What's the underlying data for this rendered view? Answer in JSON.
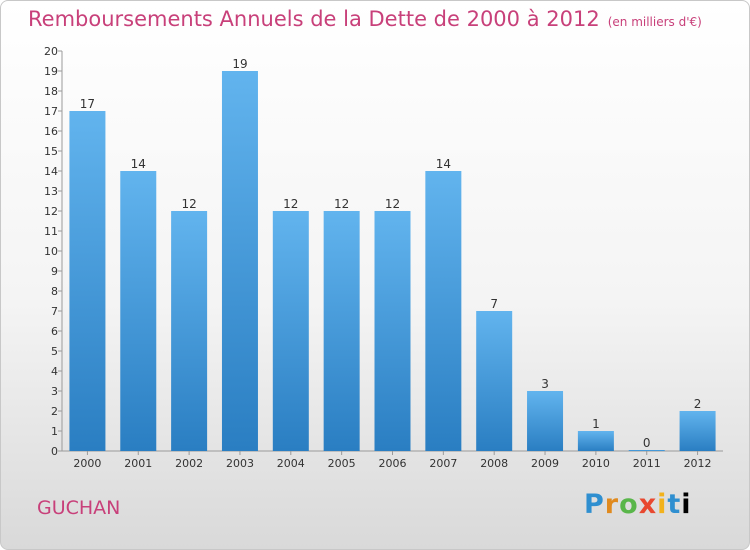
{
  "title": "Remboursements Annuels de la Dette de 2000 à 2012",
  "unit_label": "(en milliers d'€)",
  "commune": "GUCHAN",
  "logo_text": "Proxiti",
  "colors": {
    "title": "#c8407a",
    "bar_top": "#62b4ee",
    "bar_bottom": "#2a7ec2"
  },
  "chart_data": {
    "type": "bar",
    "categories": [
      "2000",
      "2001",
      "2002",
      "2003",
      "2004",
      "2005",
      "2006",
      "2007",
      "2008",
      "2009",
      "2010",
      "2011",
      "2012"
    ],
    "values": [
      17,
      14,
      12,
      19,
      12,
      12,
      12,
      14,
      7,
      3,
      1,
      0,
      2
    ],
    "title": "Remboursements Annuels de la Dette de 2000 à 2012",
    "xlabel": "",
    "ylabel": "",
    "ylim": [
      0,
      20
    ],
    "yticks": [
      0,
      1,
      2,
      3,
      4,
      5,
      6,
      7,
      8,
      9,
      10,
      11,
      12,
      13,
      14,
      15,
      16,
      17,
      18,
      19,
      20
    ],
    "grid": false,
    "legend": "none"
  }
}
